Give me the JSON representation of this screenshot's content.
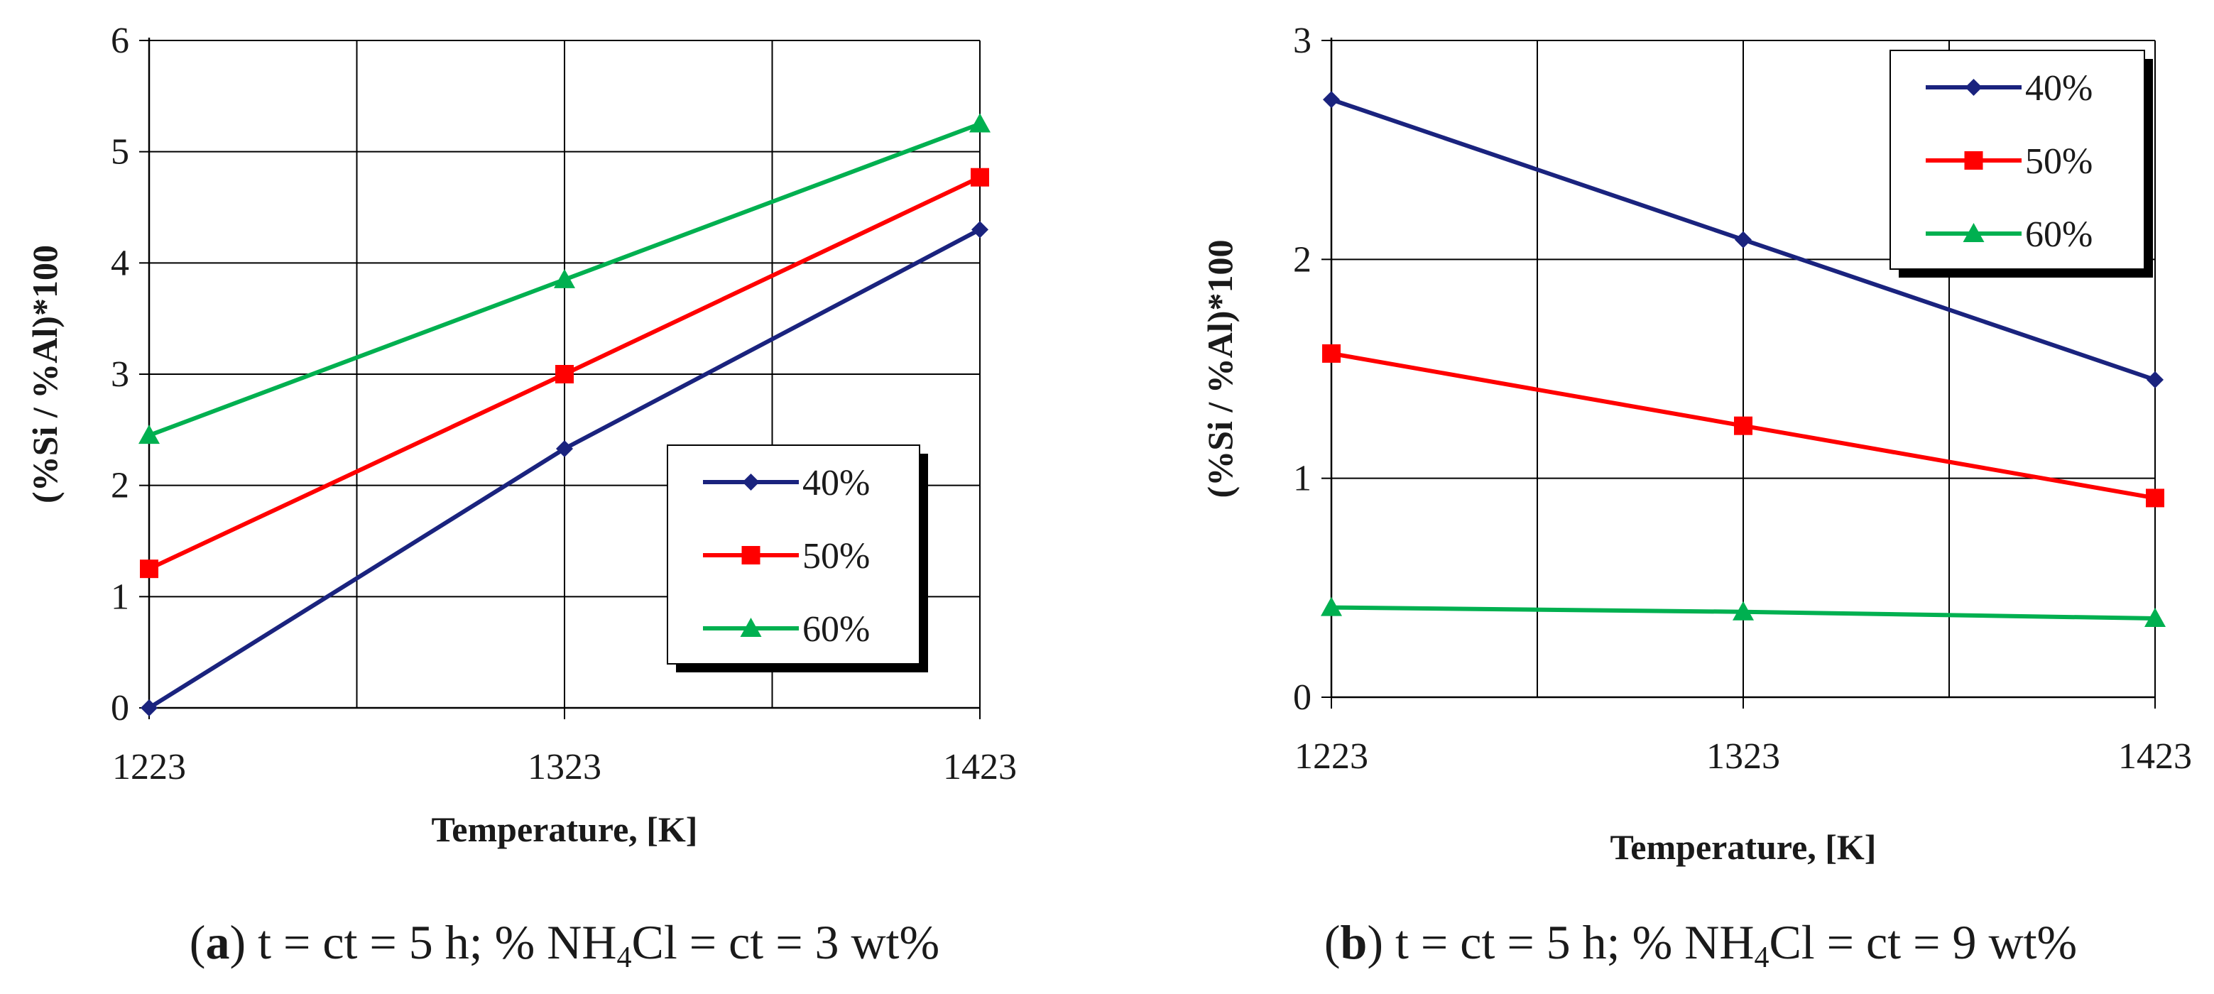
{
  "chart_data": [
    {
      "id": "a",
      "type": "line",
      "title": "",
      "xlabel": "Temperature, [K]",
      "ylabel": "(%Si / %Al)*100",
      "x": [
        1223,
        1323,
        1423
      ],
      "x_ticks": [
        "1223",
        "1323",
        "1423"
      ],
      "ylim": [
        0,
        6
      ],
      "y_ticks": [
        "0",
        "1",
        "2",
        "3",
        "4",
        "5",
        "6"
      ],
      "grid": true,
      "legend_position": "bottom-right",
      "series": [
        {
          "name": "40%",
          "color": "#1a237e",
          "marker": "diamond",
          "values": [
            0.0,
            2.33,
            4.3
          ]
        },
        {
          "name": "50%",
          "color": "#ff0000",
          "marker": "square",
          "values": [
            1.25,
            3.0,
            4.77
          ]
        },
        {
          "name": "60%",
          "color": "#00b050",
          "marker": "triangle",
          "values": [
            2.45,
            3.85,
            5.25
          ]
        }
      ],
      "caption": {
        "label": "a",
        "text": " t = ct = 5 h; % NH",
        "sub": "4",
        "tail": "Cl = ct = 3 wt%"
      }
    },
    {
      "id": "b",
      "type": "line",
      "title": "",
      "xlabel": "Temperature, [K]",
      "ylabel": "(%Si / %Al)*100",
      "x": [
        1223,
        1323,
        1423
      ],
      "x_ticks": [
        "1223",
        "1323",
        "1423"
      ],
      "ylim": [
        0,
        3
      ],
      "y_ticks": [
        "0",
        "1",
        "2",
        "3"
      ],
      "grid": true,
      "legend_position": "top-right",
      "series": [
        {
          "name": "40%",
          "color": "#1a237e",
          "marker": "diamond",
          "values": [
            2.73,
            2.09,
            1.45
          ]
        },
        {
          "name": "50%",
          "color": "#ff0000",
          "marker": "square",
          "values": [
            1.57,
            1.24,
            0.91
          ]
        },
        {
          "name": "60%",
          "color": "#00b050",
          "marker": "triangle",
          "values": [
            0.41,
            0.39,
            0.36
          ]
        }
      ],
      "caption": {
        "label": "b",
        "text": " t = ct = 5 h; % NH",
        "sub": "4",
        "tail": "Cl = ct = 9 wt%"
      }
    }
  ]
}
